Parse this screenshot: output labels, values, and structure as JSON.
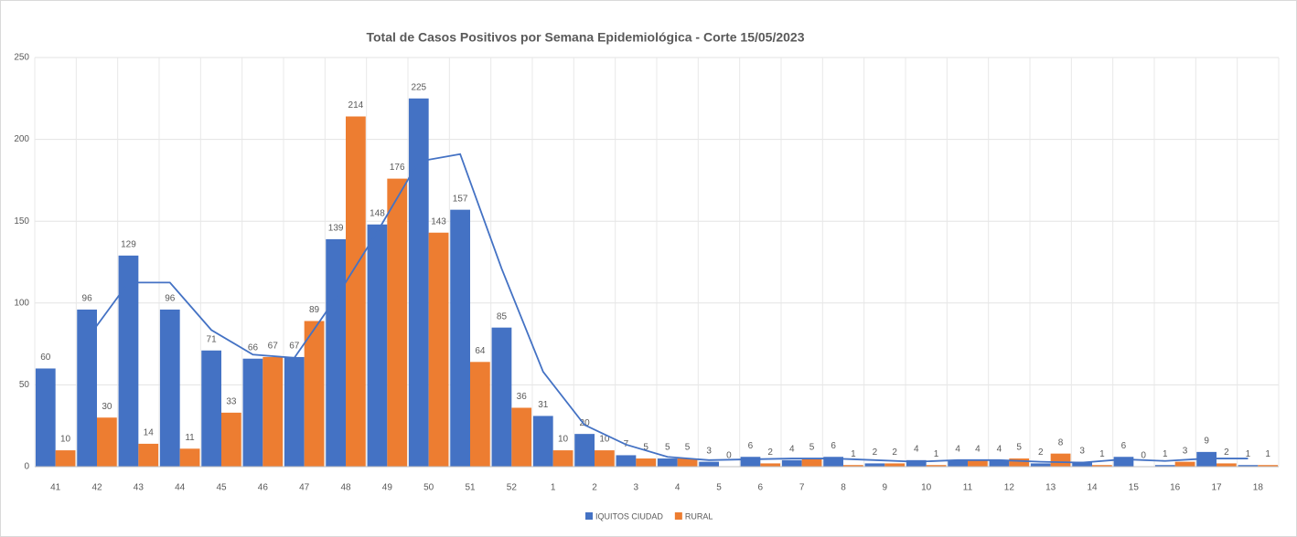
{
  "chart_data": {
    "type": "bar",
    "title": "Total de Casos Positivos por Semana Epidemiológica - Corte 15/05/2023",
    "categories": [
      "41",
      "42",
      "43",
      "44",
      "45",
      "46",
      "47",
      "48",
      "49",
      "50",
      "51",
      "52",
      "1",
      "2",
      "3",
      "4",
      "5",
      "6",
      "7",
      "8",
      "9",
      "10",
      "11",
      "12",
      "13",
      "14",
      "15",
      "16",
      "17",
      "18"
    ],
    "series": [
      {
        "name": "IQUITOS CIUDAD",
        "color": "#4472c4",
        "values": [
          60,
          96,
          129,
          96,
          71,
          66,
          67,
          139,
          148,
          225,
          157,
          85,
          31,
          20,
          7,
          5,
          3,
          6,
          4,
          6,
          2,
          4,
          4,
          4,
          2,
          3,
          6,
          1,
          9,
          1
        ]
      },
      {
        "name": "RURAL",
        "color": "#ed7d31",
        "values": [
          10,
          30,
          14,
          11,
          33,
          67,
          89,
          214,
          176,
          143,
          64,
          36,
          10,
          10,
          5,
          5,
          0,
          2,
          5,
          1,
          2,
          1,
          4,
          5,
          8,
          1,
          0,
          3,
          2,
          1
        ]
      }
    ],
    "trendline": {
      "series": 0,
      "period": 2,
      "color": "#4472c4"
    },
    "ylim": [
      0,
      250
    ],
    "yticks": [
      0,
      50,
      100,
      150,
      200,
      250
    ],
    "grid": true,
    "legend": "bottom"
  }
}
